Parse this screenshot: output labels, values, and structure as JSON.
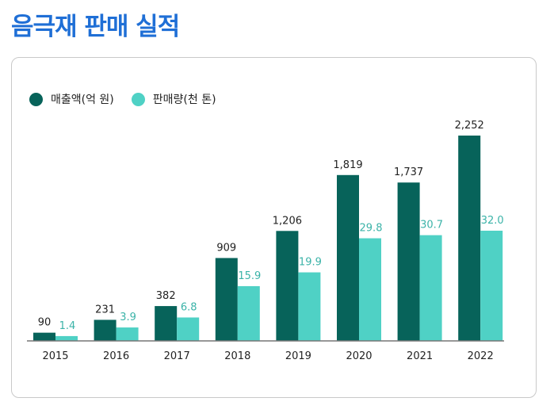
{
  "page": {
    "title": "음극재 판매 실적"
  },
  "legend": {
    "revenue_label": "매출액(억 원)",
    "volume_label": "판매량(천 톤)"
  },
  "colors": {
    "title": "#1f6fd6",
    "revenue": "#07635a",
    "volume": "#4fd1c5",
    "volume_text": "#3bb3a8"
  },
  "chart_data": {
    "type": "bar",
    "title": "",
    "categories": [
      "2015",
      "2016",
      "2017",
      "2018",
      "2019",
      "2020",
      "2021",
      "2022"
    ],
    "series": [
      {
        "name": "매출액(억 원)",
        "values": [
          90,
          231,
          382,
          909,
          1206,
          1819,
          1737,
          2252
        ],
        "labels": [
          "90",
          "231",
          "382",
          "909",
          "1,206",
          "1,819",
          "1,737",
          "2,252"
        ]
      },
      {
        "name": "판매량(천 톤)",
        "values": [
          1.4,
          3.9,
          6.8,
          15.9,
          19.9,
          29.8,
          30.7,
          32.0
        ],
        "labels": [
          "1.4",
          "3.9",
          "6.8",
          "15.9",
          "19.9",
          "29.8",
          "30.7",
          "32.0"
        ]
      }
    ],
    "ylim": [
      0,
      2252
    ],
    "grid": false,
    "legend_position": "top-left"
  }
}
